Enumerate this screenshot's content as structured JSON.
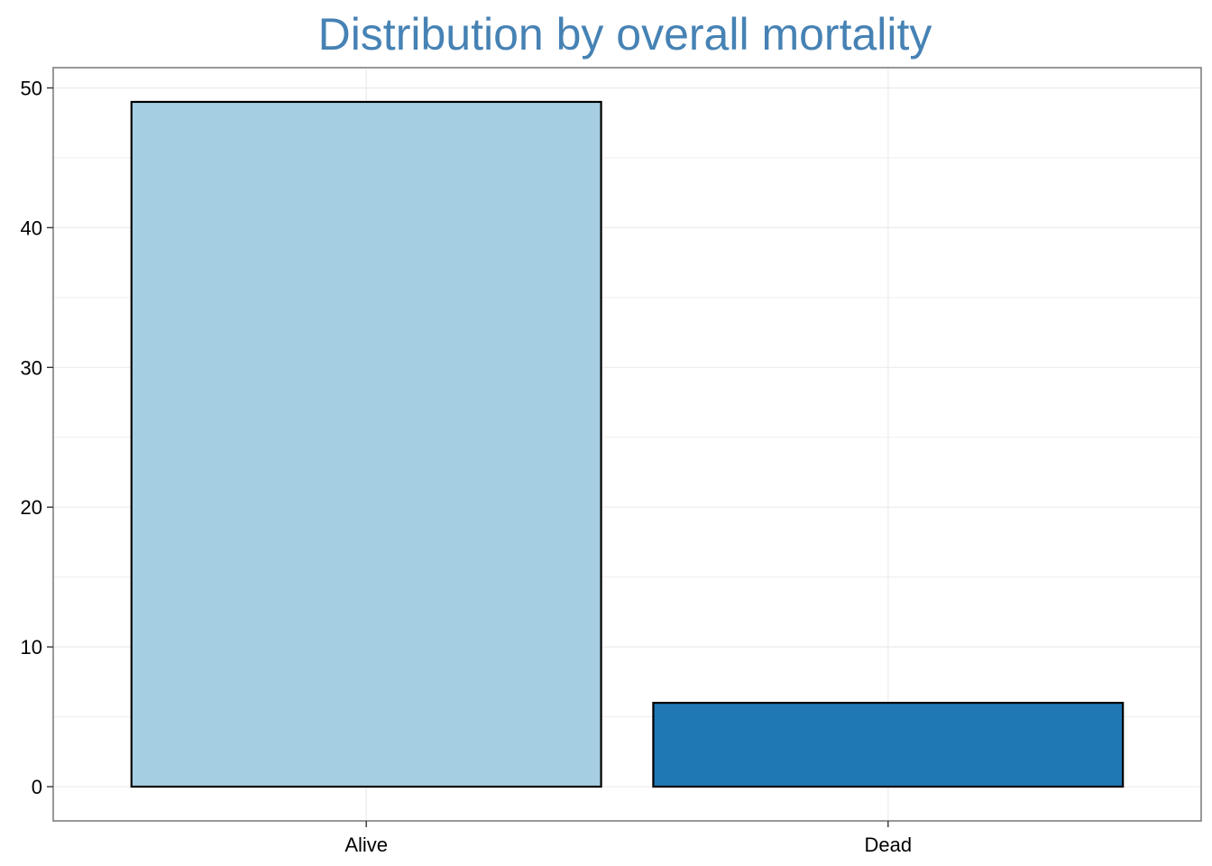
{
  "chart_data": {
    "type": "bar",
    "title": "Distribution by overall mortality",
    "xlabel": "",
    "ylabel": "",
    "categories": [
      "Alive",
      "Dead"
    ],
    "values": [
      49,
      6
    ],
    "colors": [
      "#A6CEE3",
      "#1F78B4"
    ],
    "ylim": [
      -2.45,
      51.45
    ],
    "yticks": [
      0,
      10,
      20,
      30,
      40,
      50
    ],
    "grid": true,
    "legend": "none",
    "title_color": "#4682B4",
    "bar_outline_color": "#000000",
    "panel_border_color": "#7F7F7F",
    "grid_color": "#EBEBEB"
  }
}
